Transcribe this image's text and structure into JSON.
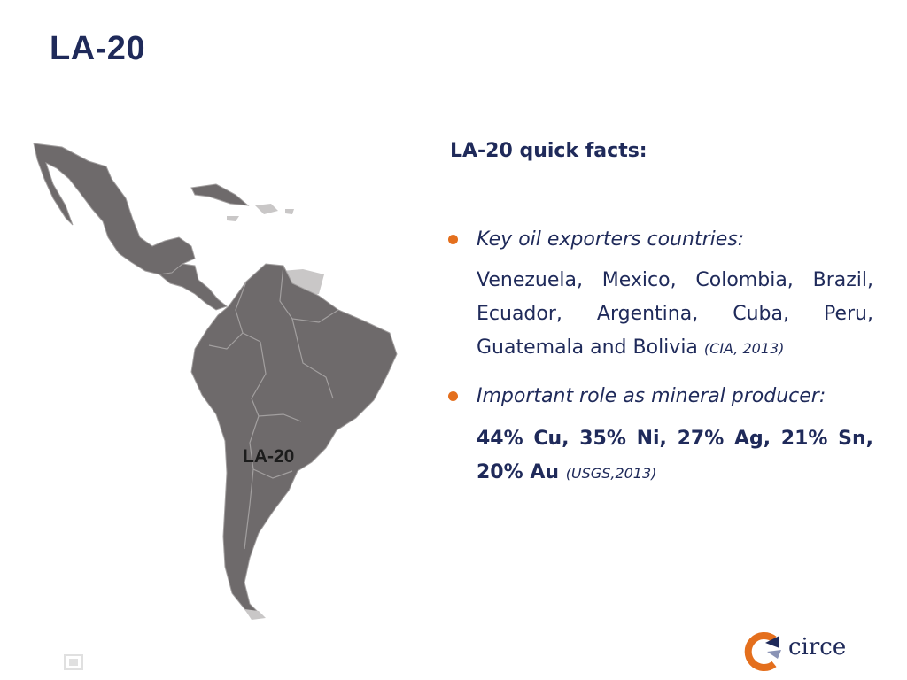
{
  "slide": {
    "title": "LA-20"
  },
  "map": {
    "label": "LA-20",
    "colors": {
      "highlight": "#6e6a6b",
      "other": "#c9c7c7",
      "border": "#a29f9f"
    }
  },
  "content": {
    "heading": "LA-20 quick facts:",
    "bullets": [
      {
        "label": "Key oil exporters countries:",
        "text": "Venezuela, Mexico, Colombia, Brazil, Ecuador, Argentina, Cuba, Peru, Guatemala and Bolivia",
        "reference": "(CIA, 2013)"
      },
      {
        "label": "Important role as mineral producer:",
        "text": "44% Cu, 35% Ni, 27% Ag, 21% Sn, 20% Au",
        "reference": "(USGS,2013)"
      }
    ]
  },
  "logo": {
    "text": "circe",
    "colors": {
      "orange": "#e46f1d",
      "navy": "#1f2a5a"
    }
  }
}
